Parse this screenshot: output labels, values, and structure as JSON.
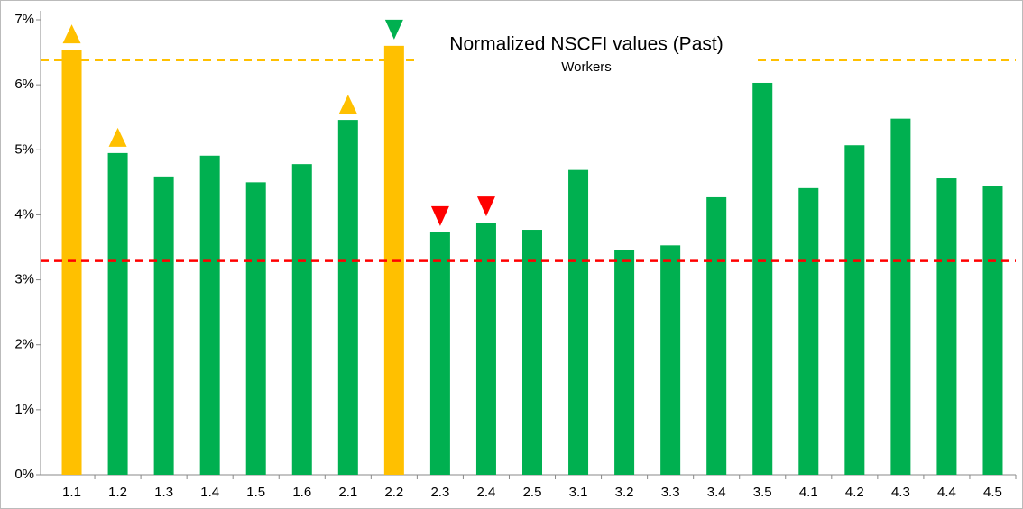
{
  "chart_data": {
    "type": "bar",
    "title": "Normalized NSCFI values (Past)",
    "subtitle": "Workers",
    "categories": [
      "1.1",
      "1.2",
      "1.3",
      "1.4",
      "1.5",
      "1.6",
      "2.1",
      "2.2",
      "2.3",
      "2.4",
      "2.5",
      "3.1",
      "3.2",
      "3.3",
      "3.4",
      "3.5",
      "4.1",
      "4.2",
      "4.3",
      "4.4",
      "4.5"
    ],
    "values": [
      6.54,
      4.95,
      4.59,
      4.91,
      4.5,
      4.78,
      5.46,
      6.6,
      3.73,
      3.88,
      3.77,
      4.69,
      3.46,
      3.53,
      4.27,
      6.03,
      4.41,
      5.07,
      5.48,
      4.56,
      4.44
    ],
    "colors": [
      "#ffc000",
      "#00b050",
      "#00b050",
      "#00b050",
      "#00b050",
      "#00b050",
      "#00b050",
      "#ffc000",
      "#00b050",
      "#00b050",
      "#00b050",
      "#00b050",
      "#00b050",
      "#00b050",
      "#00b050",
      "#00b050",
      "#00b050",
      "#00b050",
      "#00b050",
      "#00b050",
      "#00b050"
    ],
    "markers": [
      {
        "direction": "up",
        "color": "#ffc000"
      },
      {
        "direction": "up",
        "color": "#ffc000"
      },
      null,
      null,
      null,
      null,
      {
        "direction": "up",
        "color": "#ffc000"
      },
      {
        "direction": "down",
        "color": "#00b050"
      },
      {
        "direction": "down",
        "color": "#ff0000"
      },
      {
        "direction": "down",
        "color": "#ff0000"
      },
      null,
      null,
      null,
      null,
      null,
      null,
      null,
      null,
      null,
      null,
      null
    ],
    "reference_lines": [
      {
        "value": 3.29,
        "color": "#ff0000"
      },
      {
        "value": 6.38,
        "color": "#ffc000"
      }
    ],
    "ylim": [
      0,
      7
    ],
    "yticks": [
      {
        "value": 0,
        "label": "0%"
      },
      {
        "value": 1,
        "label": "1%"
      },
      {
        "value": 2,
        "label": "2%"
      },
      {
        "value": 3,
        "label": "3%"
      },
      {
        "value": 4,
        "label": "4%"
      },
      {
        "value": 5,
        "label": "5%"
      },
      {
        "value": 6,
        "label": "6%"
      },
      {
        "value": 7,
        "label": "7%"
      }
    ]
  }
}
